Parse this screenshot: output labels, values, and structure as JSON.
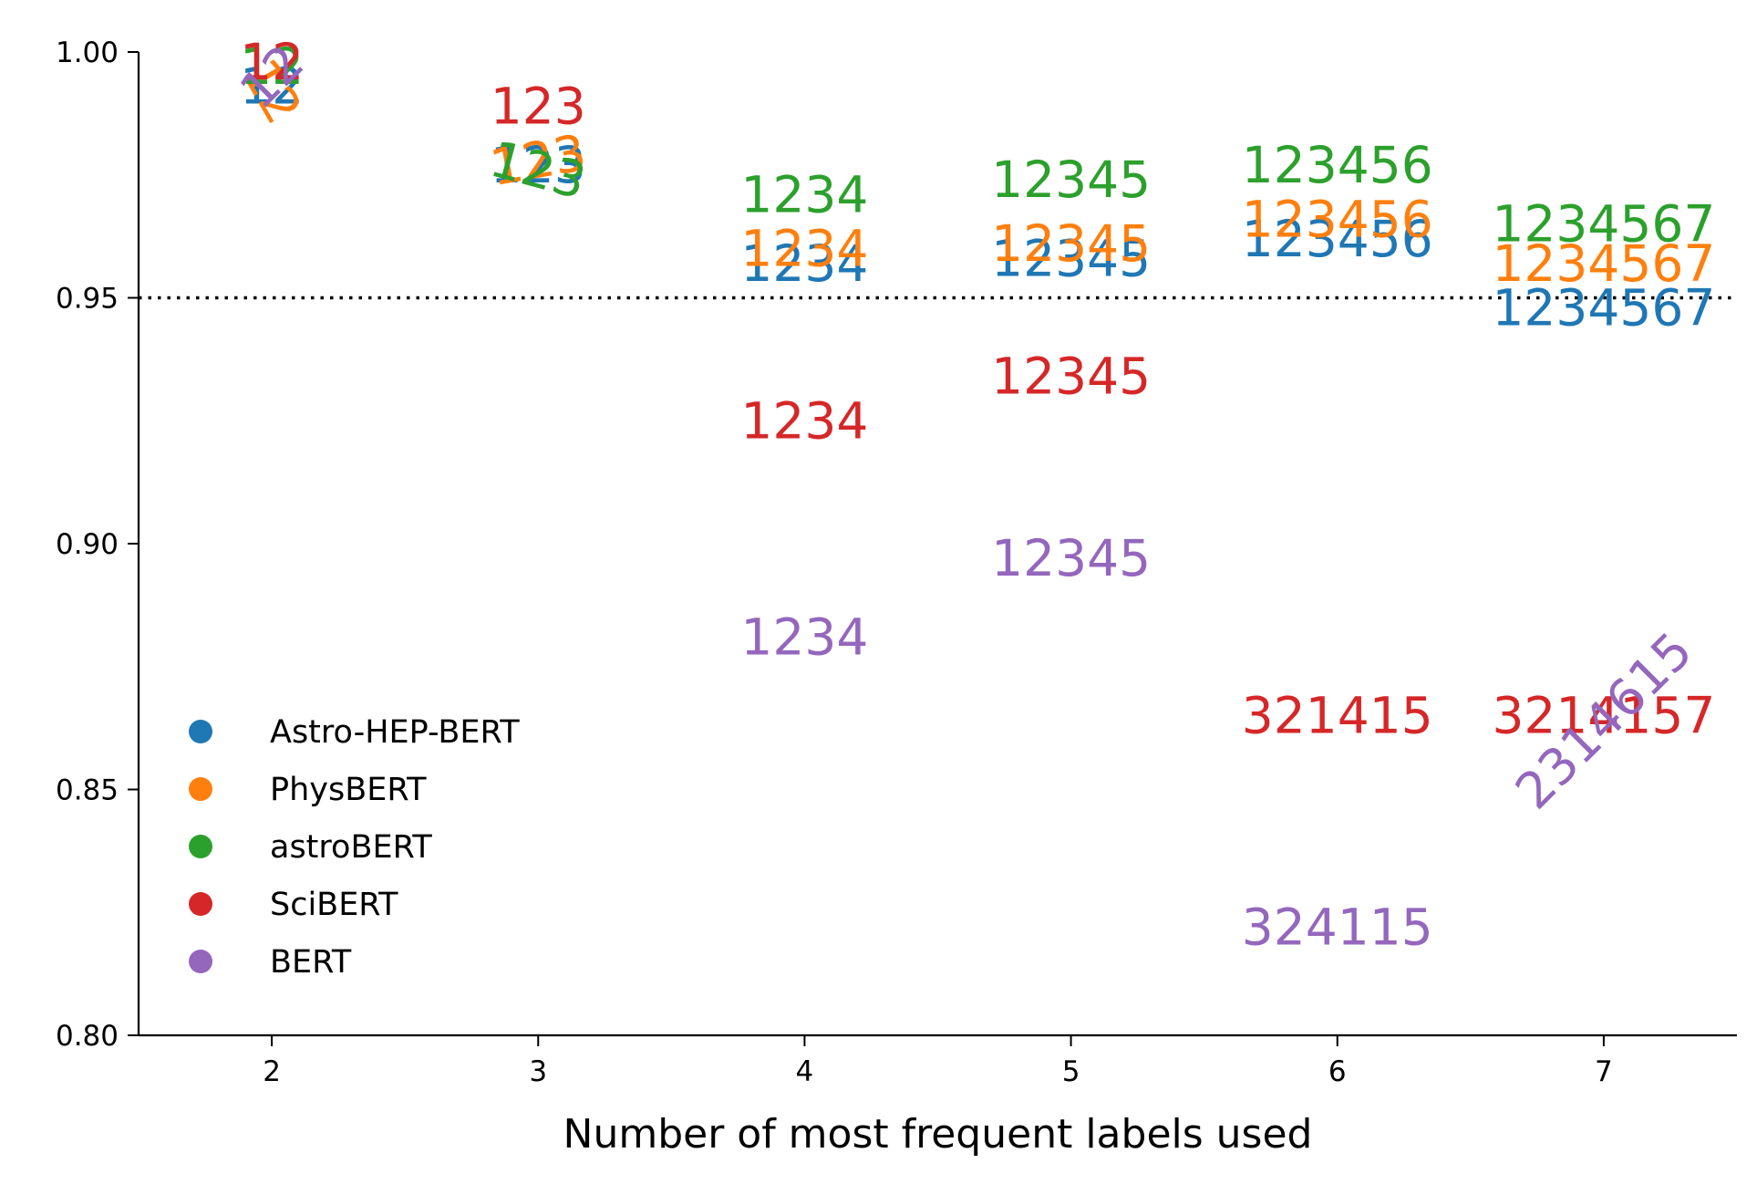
{
  "chart_data": {
    "type": "scatter",
    "title": "",
    "xlabel": "Number of most frequent labels used",
    "ylabel": "",
    "xlim": [
      1.5,
      7.5
    ],
    "ylim": [
      0.8,
      1.0
    ],
    "xticks": [
      "2",
      "3",
      "4",
      "5",
      "6",
      "7"
    ],
    "yticks": [
      "0.80",
      "0.85",
      "0.90",
      "0.95",
      "1.00"
    ],
    "reference_line": {
      "y": 0.95,
      "style": "dotted",
      "color": "#000000"
    },
    "grid": false,
    "legend_position": "lower-left",
    "series": [
      {
        "name": "Astro-HEP-BERT",
        "color": "#1f77b4",
        "points": [
          {
            "x": 2,
            "y": 0.993,
            "label": "12",
            "rotation": 0
          },
          {
            "x": 3,
            "y": 0.977,
            "label": "123",
            "rotation": 0
          },
          {
            "x": 4,
            "y": 0.957,
            "label": "1234",
            "rotation": 0
          },
          {
            "x": 5,
            "y": 0.958,
            "label": "12345",
            "rotation": 0
          },
          {
            "x": 6,
            "y": 0.962,
            "label": "123456",
            "rotation": 0
          },
          {
            "x": 7,
            "y": 0.948,
            "label": "1234567",
            "rotation": 0
          }
        ]
      },
      {
        "name": "PhysBERT",
        "color": "#ff7f0e",
        "points": [
          {
            "x": 2,
            "y": 0.992,
            "label": "12",
            "rotation": 60
          },
          {
            "x": 3,
            "y": 0.978,
            "label": "123",
            "rotation": -10
          },
          {
            "x": 4,
            "y": 0.96,
            "label": "1234",
            "rotation": 0
          },
          {
            "x": 5,
            "y": 0.961,
            "label": "12345",
            "rotation": 0
          },
          {
            "x": 6,
            "y": 0.966,
            "label": "123456",
            "rotation": 0
          },
          {
            "x": 7,
            "y": 0.957,
            "label": "1234567",
            "rotation": 0
          }
        ]
      },
      {
        "name": "astroBERT",
        "color": "#2ca02c",
        "points": [
          {
            "x": 2,
            "y": 0.997,
            "label": "12",
            "rotation": 0
          },
          {
            "x": 3,
            "y": 0.976,
            "label": "123",
            "rotation": 15
          },
          {
            "x": 4,
            "y": 0.971,
            "label": "1234",
            "rotation": 0
          },
          {
            "x": 5,
            "y": 0.974,
            "label": "12345",
            "rotation": 0
          },
          {
            "x": 6,
            "y": 0.977,
            "label": "123456",
            "rotation": 0
          },
          {
            "x": 7,
            "y": 0.965,
            "label": "1234567",
            "rotation": 0
          }
        ]
      },
      {
        "name": "SciBERT",
        "color": "#d62728",
        "points": [
          {
            "x": 2,
            "y": 0.998,
            "label": "12",
            "rotation": 0
          },
          {
            "x": 3,
            "y": 0.989,
            "label": "123",
            "rotation": 0
          },
          {
            "x": 4,
            "y": 0.925,
            "label": "1234",
            "rotation": 0
          },
          {
            "x": 5,
            "y": 0.934,
            "label": "12345",
            "rotation": 0
          },
          {
            "x": 6,
            "y": 0.865,
            "label": "321415",
            "rotation": 0
          },
          {
            "x": 7,
            "y": 0.865,
            "label": "3214157",
            "rotation": 0
          }
        ]
      },
      {
        "name": "BERT",
        "color": "#9467bd",
        "points": [
          {
            "x": 2,
            "y": 0.995,
            "label": "12",
            "rotation": -45
          },
          {
            "x": 3,
            "y": null,
            "label": "",
            "rotation": 0
          },
          {
            "x": 4,
            "y": 0.881,
            "label": "1234",
            "rotation": 0
          },
          {
            "x": 5,
            "y": 0.897,
            "label": "12345",
            "rotation": 0
          },
          {
            "x": 6,
            "y": 0.822,
            "label": "324115",
            "rotation": 0
          },
          {
            "x": 7,
            "y": 0.864,
            "label": "2314615",
            "rotation": -45
          }
        ]
      }
    ]
  }
}
